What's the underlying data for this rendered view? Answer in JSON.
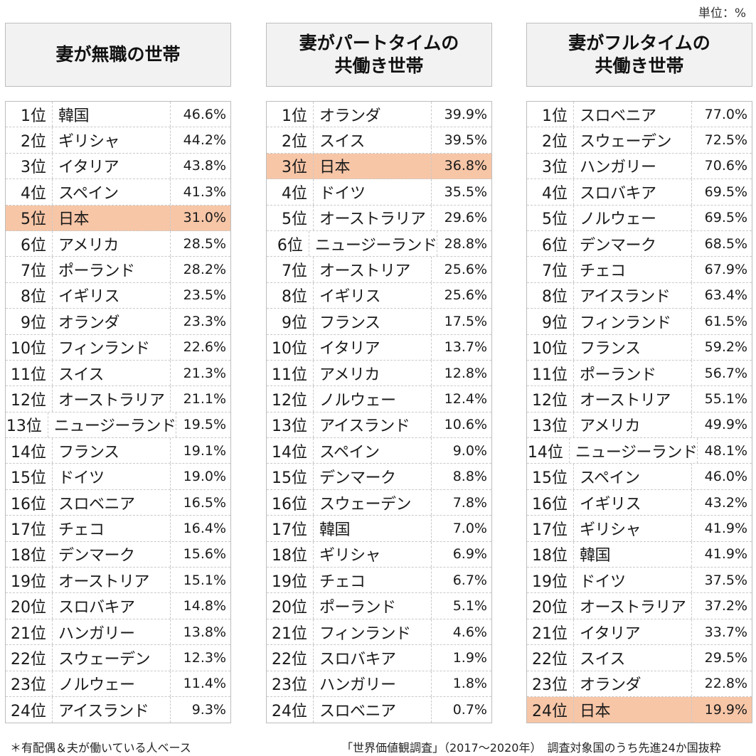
{
  "unit": "単位：%",
  "chart_data": {
    "type": "table",
    "columns": [
      {
        "title": "妻が無職の世帯",
        "rows": [
          {
            "rank": "1位",
            "country": "韓国",
            "value": "46.6%"
          },
          {
            "rank": "2位",
            "country": "ギリシャ",
            "value": "44.2%"
          },
          {
            "rank": "3位",
            "country": "イタリア",
            "value": "43.8%"
          },
          {
            "rank": "4位",
            "country": "スペイン",
            "value": "41.3%"
          },
          {
            "rank": "5位",
            "country": "日本",
            "value": "31.0%",
            "highlight": true
          },
          {
            "rank": "6位",
            "country": "アメリカ",
            "value": "28.5%"
          },
          {
            "rank": "7位",
            "country": "ポーランド",
            "value": "28.2%"
          },
          {
            "rank": "8位",
            "country": "イギリス",
            "value": "23.5%"
          },
          {
            "rank": "9位",
            "country": "オランダ",
            "value": "23.3%"
          },
          {
            "rank": "10位",
            "country": "フィンランド",
            "value": "22.6%"
          },
          {
            "rank": "11位",
            "country": "スイス",
            "value": "21.3%"
          },
          {
            "rank": "12位",
            "country": "オーストラリア",
            "value": "21.1%"
          },
          {
            "rank": "13位",
            "country": "ニュージーランド",
            "value": "19.5%"
          },
          {
            "rank": "14位",
            "country": "フランス",
            "value": "19.1%"
          },
          {
            "rank": "15位",
            "country": "ドイツ",
            "value": "19.0%"
          },
          {
            "rank": "16位",
            "country": "スロベニア",
            "value": "16.5%"
          },
          {
            "rank": "17位",
            "country": "チェコ",
            "value": "16.4%"
          },
          {
            "rank": "18位",
            "country": "デンマーク",
            "value": "15.6%"
          },
          {
            "rank": "19位",
            "country": "オーストリア",
            "value": "15.1%"
          },
          {
            "rank": "20位",
            "country": "スロバキア",
            "value": "14.8%"
          },
          {
            "rank": "21位",
            "country": "ハンガリー",
            "value": "13.8%"
          },
          {
            "rank": "22位",
            "country": "スウェーデン",
            "value": "12.3%"
          },
          {
            "rank": "23位",
            "country": "ノルウェー",
            "value": "11.4%"
          },
          {
            "rank": "24位",
            "country": "アイスランド",
            "value": "9.3%"
          }
        ]
      },
      {
        "title": "妻がパートタイムの\n共働き世帯",
        "rows": [
          {
            "rank": "1位",
            "country": "オランダ",
            "value": "39.9%"
          },
          {
            "rank": "2位",
            "country": "スイス",
            "value": "39.5%"
          },
          {
            "rank": "3位",
            "country": "日本",
            "value": "36.8%",
            "highlight": true
          },
          {
            "rank": "4位",
            "country": "ドイツ",
            "value": "35.5%"
          },
          {
            "rank": "5位",
            "country": "オーストラリア",
            "value": "29.6%"
          },
          {
            "rank": "6位",
            "country": "ニュージーランド",
            "value": "28.8%"
          },
          {
            "rank": "7位",
            "country": "オーストリア",
            "value": "25.6%"
          },
          {
            "rank": "8位",
            "country": "イギリス",
            "value": "25.6%"
          },
          {
            "rank": "9位",
            "country": "フランス",
            "value": "17.5%"
          },
          {
            "rank": "10位",
            "country": "イタリア",
            "value": "13.7%"
          },
          {
            "rank": "11位",
            "country": "アメリカ",
            "value": "12.8%"
          },
          {
            "rank": "12位",
            "country": "ノルウェー",
            "value": "12.4%"
          },
          {
            "rank": "13位",
            "country": "アイスランド",
            "value": "10.6%"
          },
          {
            "rank": "14位",
            "country": "スペイン",
            "value": "9.0%"
          },
          {
            "rank": "15位",
            "country": "デンマーク",
            "value": "8.8%"
          },
          {
            "rank": "16位",
            "country": "スウェーデン",
            "value": "7.8%"
          },
          {
            "rank": "17位",
            "country": "韓国",
            "value": "7.0%"
          },
          {
            "rank": "18位",
            "country": "ギリシャ",
            "value": "6.9%"
          },
          {
            "rank": "19位",
            "country": "チェコ",
            "value": "6.7%"
          },
          {
            "rank": "20位",
            "country": "ポーランド",
            "value": "5.1%"
          },
          {
            "rank": "21位",
            "country": "フィンランド",
            "value": "4.6%"
          },
          {
            "rank": "22位",
            "country": "スロバキア",
            "value": "1.9%"
          },
          {
            "rank": "23位",
            "country": "ハンガリー",
            "value": "1.8%"
          },
          {
            "rank": "24位",
            "country": "スロベニア",
            "value": "0.7%"
          }
        ]
      },
      {
        "title": "妻がフルタイムの\n共働き世帯",
        "rows": [
          {
            "rank": "1位",
            "country": "スロベニア",
            "value": "77.0%"
          },
          {
            "rank": "2位",
            "country": "スウェーデン",
            "value": "72.5%"
          },
          {
            "rank": "3位",
            "country": "ハンガリー",
            "value": "70.6%"
          },
          {
            "rank": "4位",
            "country": "スロバキア",
            "value": "69.5%"
          },
          {
            "rank": "5位",
            "country": "ノルウェー",
            "value": "69.5%"
          },
          {
            "rank": "6位",
            "country": "デンマーク",
            "value": "68.5%"
          },
          {
            "rank": "7位",
            "country": "チェコ",
            "value": "67.9%"
          },
          {
            "rank": "8位",
            "country": "アイスランド",
            "value": "63.4%"
          },
          {
            "rank": "9位",
            "country": "フィンランド",
            "value": "61.5%"
          },
          {
            "rank": "10位",
            "country": "フランス",
            "value": "59.2%"
          },
          {
            "rank": "11位",
            "country": "ポーランド",
            "value": "56.7%"
          },
          {
            "rank": "12位",
            "country": "オーストリア",
            "value": "55.1%"
          },
          {
            "rank": "13位",
            "country": "アメリカ",
            "value": "49.9%"
          },
          {
            "rank": "14位",
            "country": "ニュージーランド",
            "value": "48.1%"
          },
          {
            "rank": "15位",
            "country": "スペイン",
            "value": "46.0%"
          },
          {
            "rank": "16位",
            "country": "イギリス",
            "value": "43.2%"
          },
          {
            "rank": "17位",
            "country": "ギリシャ",
            "value": "41.9%"
          },
          {
            "rank": "18位",
            "country": "韓国",
            "value": "41.9%"
          },
          {
            "rank": "19位",
            "country": "ドイツ",
            "value": "37.5%"
          },
          {
            "rank": "20位",
            "country": "オーストラリア",
            "value": "37.2%"
          },
          {
            "rank": "21位",
            "country": "イタリア",
            "value": "33.7%"
          },
          {
            "rank": "22位",
            "country": "スイス",
            "value": "29.5%"
          },
          {
            "rank": "23位",
            "country": "オランダ",
            "value": "22.8%"
          },
          {
            "rank": "24位",
            "country": "日本",
            "value": "19.9%",
            "highlight": true
          }
        ]
      }
    ],
    "highlight_color": "#f7c6a7"
  },
  "footer": {
    "note": "＊有配偶＆夫が働いている人ベース",
    "source": "「世界価値観調査」（2017～2020年）　調査対象国のうち先進24か国抜粋"
  }
}
